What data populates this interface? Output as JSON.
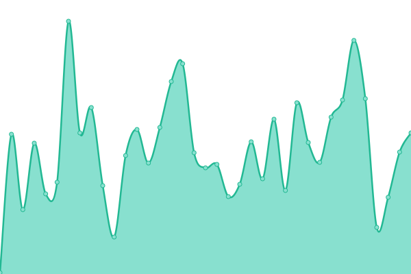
{
  "chart_data": {
    "type": "area",
    "categories": [
      null,
      null,
      null,
      null,
      null,
      null,
      null,
      null,
      null,
      null,
      null,
      null,
      null,
      null,
      null,
      null,
      null,
      null,
      null,
      null,
      null,
      null,
      null,
      null,
      null,
      null,
      null,
      null,
      null,
      null,
      null,
      null,
      null,
      null,
      null,
      null,
      null
    ],
    "values": [
      2,
      204,
      94,
      191,
      117,
      134,
      369,
      206,
      243,
      129,
      54,
      173,
      211,
      162,
      214,
      281,
      307,
      177,
      155,
      160,
      113,
      131,
      193,
      139,
      226,
      122,
      250,
      192,
      163,
      229,
      254,
      341,
      256,
      68,
      112,
      178,
      206
    ],
    "color": "#22b893",
    "fill": "#88e0cf",
    "ylim": [
      0,
      400
    ]
  }
}
